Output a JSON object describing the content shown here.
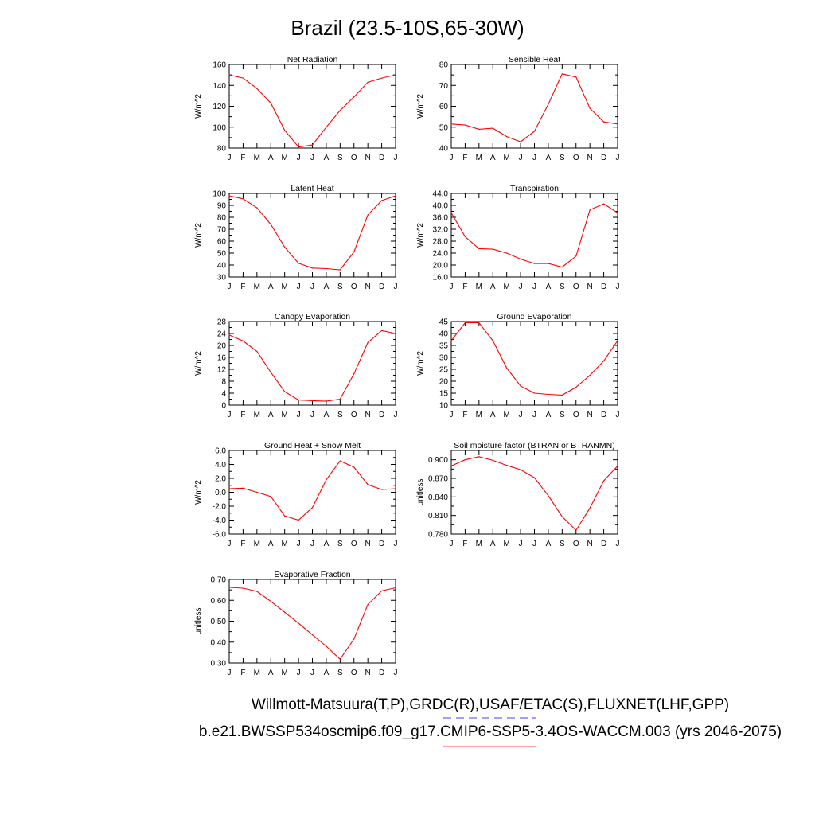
{
  "figure": {
    "title": "Brazil (23.5-10S,65-30W)",
    "legend": [
      {
        "text": "Willmott-Matsuura(T,P),GRDC(R),USAF/ETAC(S),FLUXNET(LHF,GPP)",
        "line_color": "#6666ff",
        "line_style": "dashed"
      },
      {
        "text": "b.e21.BWSSP534oscmip6.f09_g17.CMIP6-SSP5-3.4OS-WACCM.003 (yrs 2046-2075)",
        "line_color": "#ff6666",
        "line_style": "solid"
      }
    ]
  },
  "colors": {
    "series": "#ff0000",
    "axes": "#000000"
  },
  "chart_data": [
    {
      "type": "line",
      "title": "Net Radiation",
      "ylabel": "W/m^2",
      "categories": [
        "J",
        "F",
        "M",
        "A",
        "M",
        "J",
        "J",
        "A",
        "S",
        "O",
        "N",
        "D",
        "J"
      ],
      "ylim": [
        80,
        160
      ],
      "yticks": [
        80,
        100,
        120,
        140,
        160
      ],
      "ytick_labels": [
        "80",
        "100",
        "120",
        "140",
        "160"
      ],
      "series": [
        {
          "values": [
            150,
            147,
            137,
            123,
            97,
            81,
            83,
            100,
            116,
            129,
            143,
            147,
            150
          ]
        }
      ]
    },
    {
      "type": "line",
      "title": "Sensible Heat",
      "ylabel": "W/m^2",
      "categories": [
        "J",
        "F",
        "M",
        "A",
        "M",
        "J",
        "J",
        "A",
        "S",
        "O",
        "N",
        "D",
        "J"
      ],
      "ylim": [
        40,
        80
      ],
      "yticks": [
        40,
        50,
        60,
        70,
        80
      ],
      "ytick_labels": [
        "40",
        "50",
        "60",
        "70",
        "80"
      ],
      "series": [
        {
          "values": [
            51.5,
            51,
            49,
            49.5,
            45.5,
            43,
            48,
            61,
            75.5,
            74,
            59,
            52.5,
            51.5
          ]
        }
      ]
    },
    {
      "type": "line",
      "title": "Latent Heat",
      "ylabel": "W/m^2",
      "categories": [
        "J",
        "F",
        "M",
        "A",
        "M",
        "J",
        "J",
        "A",
        "S",
        "O",
        "N",
        "D",
        "J"
      ],
      "ylim": [
        30,
        100
      ],
      "yticks": [
        30,
        40,
        50,
        60,
        70,
        80,
        90,
        100
      ],
      "ytick_labels": [
        "30",
        "40",
        "50",
        "60",
        "70",
        "80",
        "90",
        "100"
      ],
      "series": [
        {
          "values": [
            98,
            95.5,
            88,
            74,
            55,
            41.5,
            37.5,
            37,
            36,
            51,
            82,
            94,
            98
          ]
        }
      ]
    },
    {
      "type": "line",
      "title": "Transpiration",
      "ylabel": "W/m^2",
      "categories": [
        "J",
        "F",
        "M",
        "A",
        "M",
        "J",
        "J",
        "A",
        "S",
        "O",
        "N",
        "D",
        "J"
      ],
      "ylim": [
        16,
        44
      ],
      "yticks": [
        16,
        20,
        24,
        28,
        32,
        36,
        40,
        44
      ],
      "ytick_labels": [
        "16.0",
        "20.0",
        "24.0",
        "28.0",
        "32.0",
        "36.0",
        "40.0",
        "44.0"
      ],
      "series": [
        {
          "values": [
            37.5,
            29.5,
            25.5,
            25.3,
            24,
            22,
            20.5,
            20.5,
            19.3,
            23,
            38.5,
            40.5,
            37.5
          ]
        }
      ]
    },
    {
      "type": "line",
      "title": "Canopy Evaporation",
      "ylabel": "W/m^2",
      "categories": [
        "J",
        "F",
        "M",
        "A",
        "M",
        "J",
        "J",
        "A",
        "S",
        "O",
        "N",
        "D",
        "J"
      ],
      "ylim": [
        0,
        28
      ],
      "yticks": [
        0,
        4,
        8,
        12,
        16,
        20,
        24,
        28
      ],
      "ytick_labels": [
        "0",
        "4",
        "8",
        "12",
        "16",
        "20",
        "24",
        "28"
      ],
      "series": [
        {
          "values": [
            23.5,
            21.5,
            18,
            11,
            4.5,
            1.7,
            1.5,
            1.3,
            2,
            10.5,
            21,
            25,
            24
          ]
        }
      ]
    },
    {
      "type": "line",
      "title": "Ground Evaporation",
      "ylabel": "W/m^2",
      "categories": [
        "J",
        "F",
        "M",
        "A",
        "M",
        "J",
        "J",
        "A",
        "S",
        "O",
        "N",
        "D",
        "J"
      ],
      "ylim": [
        10,
        45
      ],
      "yticks": [
        10,
        15,
        20,
        25,
        30,
        35,
        40,
        45
      ],
      "ytick_labels": [
        "10",
        "15",
        "20",
        "25",
        "30",
        "35",
        "40",
        "45"
      ],
      "series": [
        {
          "values": [
            37,
            44.5,
            44.5,
            37,
            25.5,
            18,
            15,
            14.5,
            14.2,
            17.5,
            22.5,
            28.5,
            37
          ]
        }
      ]
    },
    {
      "type": "line",
      "title": "Ground Heat + Snow Melt",
      "ylabel": "W/m^2",
      "categories": [
        "J",
        "F",
        "M",
        "A",
        "M",
        "J",
        "J",
        "A",
        "S",
        "O",
        "N",
        "D",
        "J"
      ],
      "ylim": [
        -6,
        6
      ],
      "yticks": [
        -6,
        -4,
        -2,
        0,
        2,
        4,
        6
      ],
      "ytick_labels": [
        "-6.0",
        "-4.0",
        "-2.0",
        "0.0",
        "2.0",
        "4.0",
        "6.0"
      ],
      "series": [
        {
          "values": [
            0.5,
            0.6,
            0,
            -0.6,
            -3.4,
            -4,
            -2.2,
            1.8,
            4.5,
            3.6,
            1.1,
            0.4,
            0.5
          ]
        }
      ]
    },
    {
      "type": "line",
      "title": "Soil moisture factor (BTRAN or BTRANMN)",
      "ylabel": "unitless",
      "categories": [
        "J",
        "F",
        "M",
        "A",
        "M",
        "J",
        "J",
        "A",
        "S",
        "O",
        "N",
        "D",
        "J"
      ],
      "ylim": [
        0.78,
        0.915
      ],
      "yticks": [
        0.78,
        0.81,
        0.84,
        0.87,
        0.9
      ],
      "ytick_labels": [
        "0.780",
        "0.810",
        "0.840",
        "0.870",
        "0.900"
      ],
      "series": [
        {
          "values": [
            0.89,
            0.9,
            0.905,
            0.899,
            0.891,
            0.884,
            0.871,
            0.842,
            0.808,
            0.786,
            0.822,
            0.866,
            0.89
          ]
        }
      ]
    },
    {
      "type": "line",
      "title": "Evaporative Fraction",
      "ylabel": "unitless",
      "categories": [
        "J",
        "F",
        "M",
        "A",
        "M",
        "J",
        "J",
        "A",
        "S",
        "O",
        "N",
        "D",
        "J"
      ],
      "ylim": [
        0.3,
        0.7
      ],
      "yticks": [
        0.3,
        0.4,
        0.5,
        0.6,
        0.7
      ],
      "ytick_labels": [
        "0.30",
        "0.40",
        "0.50",
        "0.60",
        "0.70"
      ],
      "series": [
        {
          "values": [
            0.662,
            0.658,
            0.643,
            0.595,
            0.543,
            0.49,
            0.435,
            0.38,
            0.318,
            0.415,
            0.58,
            0.645,
            0.66
          ]
        }
      ]
    }
  ]
}
